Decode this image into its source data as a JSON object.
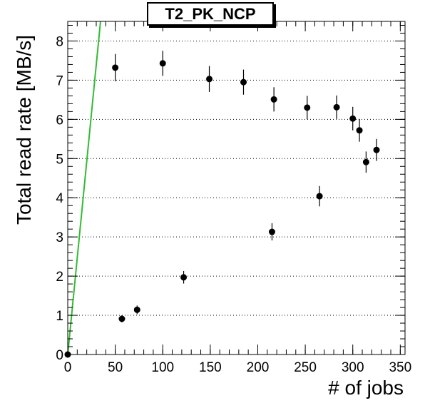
{
  "chart_data": {
    "type": "scatter",
    "title": "T2_PK_NCP",
    "xlabel": "# of jobs",
    "ylabel": "Total read rate [MB/s]",
    "xlim": [
      0,
      355
    ],
    "ylim": [
      0,
      8.5
    ],
    "x_ticks": [
      "0",
      "50",
      "100",
      "150",
      "200",
      "250",
      "300",
      "350"
    ],
    "y_ticks": [
      "0",
      "1",
      "2",
      "3",
      "4",
      "5",
      "6",
      "7",
      "8"
    ],
    "grid": "horizontal dotted",
    "series": [
      {
        "marker": "filled-circle",
        "color": "#000000",
        "points": [
          {
            "x": 0,
            "y": 0.0,
            "err": 0.02
          },
          {
            "x": 50,
            "y": 7.32,
            "err": 0.35
          },
          {
            "x": 57,
            "y": 0.91,
            "err": 0.09
          },
          {
            "x": 73,
            "y": 1.14,
            "err": 0.11
          },
          {
            "x": 100,
            "y": 7.43,
            "err": 0.32
          },
          {
            "x": 122,
            "y": 1.97,
            "err": 0.16
          },
          {
            "x": 149,
            "y": 7.03,
            "err": 0.33
          },
          {
            "x": 185,
            "y": 6.95,
            "err": 0.32
          },
          {
            "x": 215,
            "y": 3.13,
            "err": 0.22
          },
          {
            "x": 217,
            "y": 6.51,
            "err": 0.31
          },
          {
            "x": 252,
            "y": 6.3,
            "err": 0.3
          },
          {
            "x": 265,
            "y": 4.04,
            "err": 0.26
          },
          {
            "x": 283,
            "y": 6.31,
            "err": 0.3
          },
          {
            "x": 300,
            "y": 6.02,
            "err": 0.3
          },
          {
            "x": 307,
            "y": 5.72,
            "err": 0.29
          },
          {
            "x": 314,
            "y": 4.91,
            "err": 0.27
          },
          {
            "x": 325,
            "y": 5.22,
            "err": 0.28
          }
        ]
      }
    ],
    "reference_line": {
      "color": "#33bb33",
      "x": [
        0,
        34.5
      ],
      "y": [
        0,
        8.5
      ]
    }
  }
}
